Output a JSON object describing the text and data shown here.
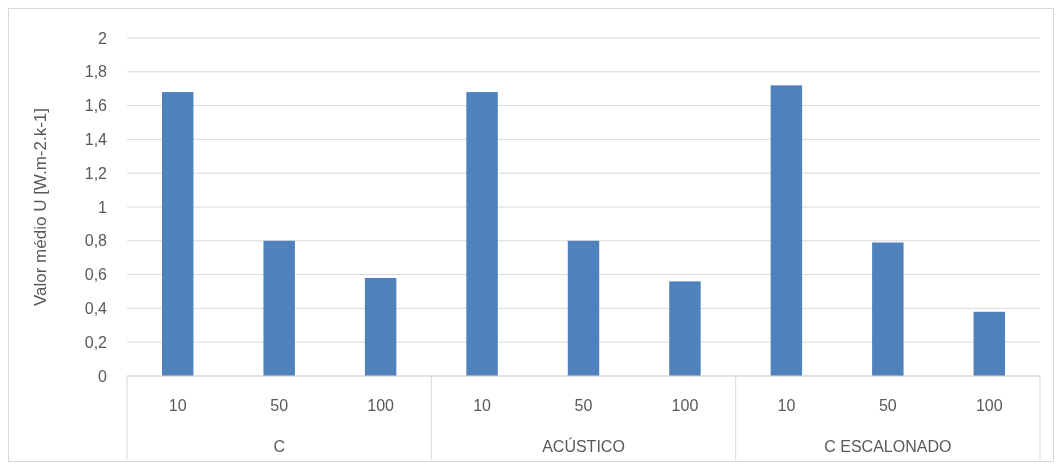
{
  "chart_data": {
    "type": "bar",
    "ylabel": "Valor médio U [W.m-2.k-1]",
    "categories": [
      "10",
      "50",
      "100",
      "10",
      "50",
      "100",
      "10",
      "50",
      "100"
    ],
    "values": [
      1.68,
      0.8,
      0.58,
      1.68,
      0.8,
      0.56,
      1.72,
      0.79,
      0.38
    ],
    "color": "#4f81bd",
    "ylim": [
      0,
      2
    ],
    "yticks": [
      0,
      {
        "value": 0.2,
        "label": "0,2"
      },
      {
        "value": 0.4,
        "label": "0,4"
      },
      {
        "value": 0.6,
        "label": "0,6"
      },
      {
        "value": 0.8,
        "label": "0,8"
      },
      1,
      {
        "value": 1.2,
        "label": "1,2"
      },
      {
        "value": 1.4,
        "label": "1,4"
      },
      {
        "value": 1.6,
        "label": "1,6"
      },
      {
        "value": 1.8,
        "label": "1,8"
      },
      2
    ],
    "grid": "y",
    "annotations": [
      "C",
      "ACÚSTICO",
      "C ESCALONADO"
    ]
  }
}
